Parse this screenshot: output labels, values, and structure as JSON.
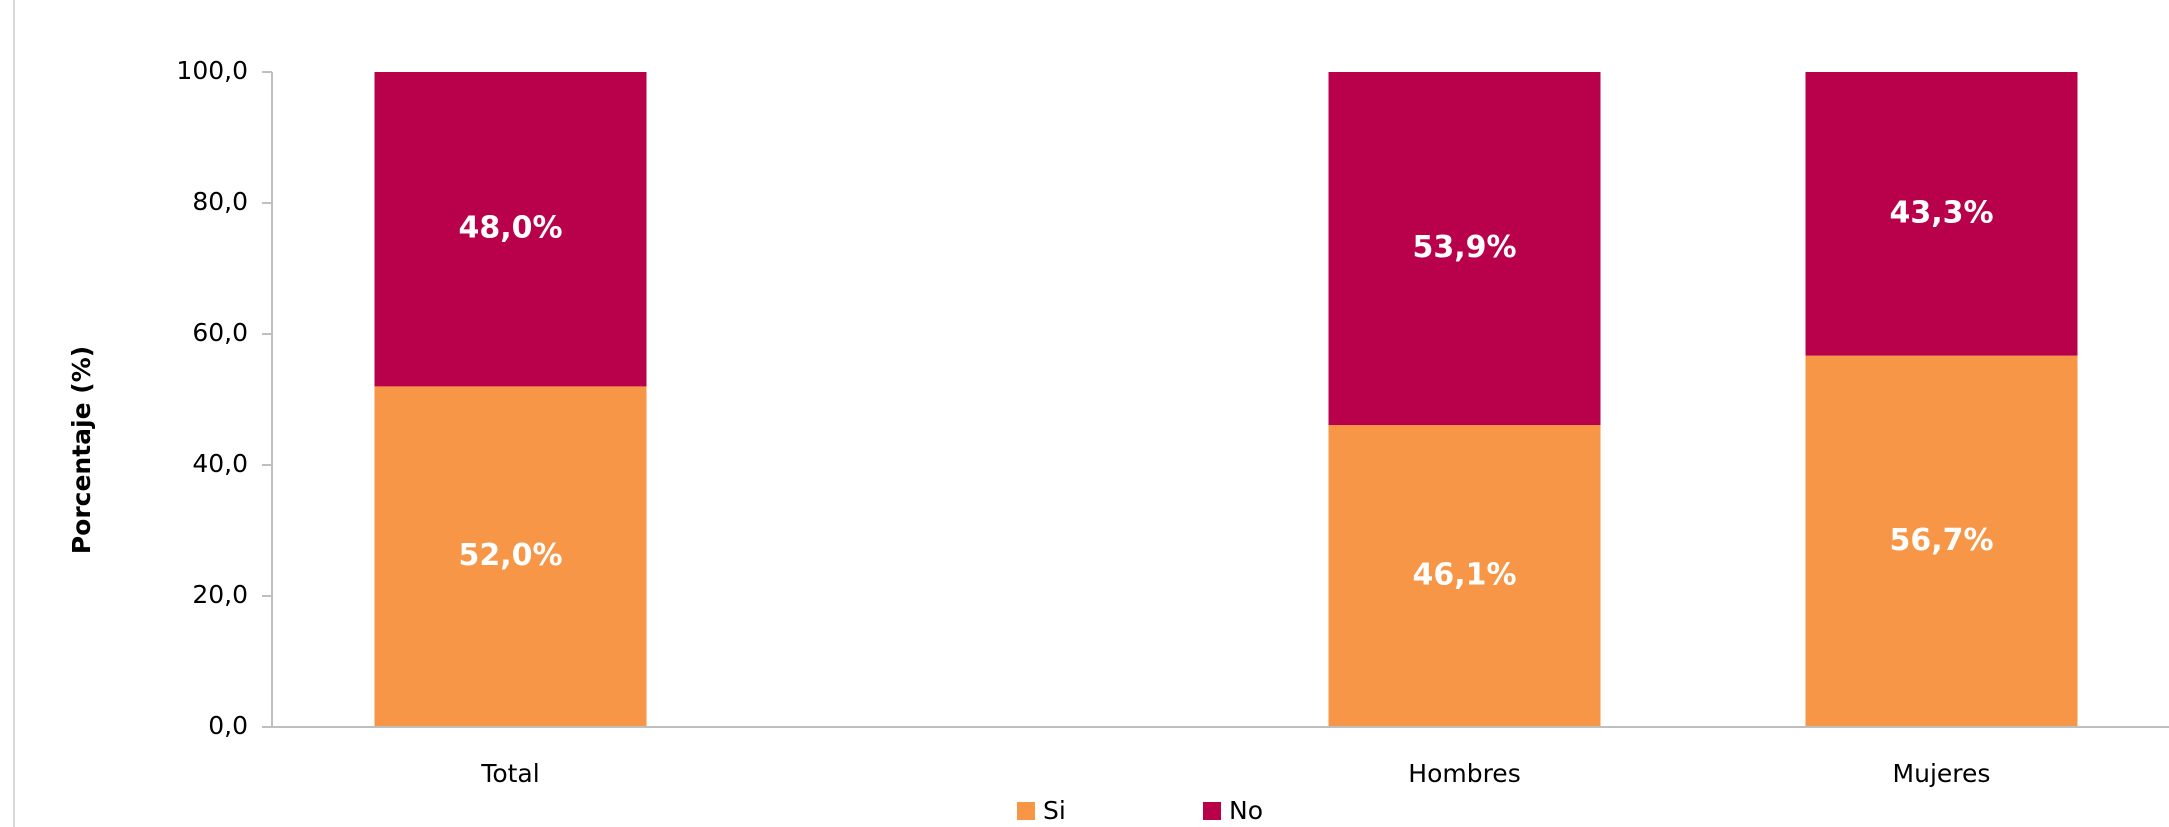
{
  "chart_data": {
    "type": "stacked_bar",
    "y_label": "Porcentaje (%)",
    "categories": [
      "Total",
      null,
      "Hombres",
      "Mujeres"
    ],
    "series": [
      {
        "name": "Si",
        "color": "#f79646",
        "values": [
          52.0,
          null,
          46.1,
          56.7
        ],
        "value_labels": [
          "52,0%",
          null,
          "46,1%",
          "56,7%"
        ]
      },
      {
        "name": "No",
        "color": "#b8004b",
        "values": [
          48.0,
          null,
          53.9,
          43.3
        ],
        "value_labels": [
          "48,0%",
          null,
          "53,9%",
          "43,3%"
        ]
      }
    ],
    "ylim": [
      0,
      100
    ],
    "yticks": [
      {
        "value": 0,
        "label": "0,0"
      },
      {
        "value": 20,
        "label": "20,0"
      },
      {
        "value": 40,
        "label": "40,0"
      },
      {
        "value": 60,
        "label": "60,0"
      },
      {
        "value": 80,
        "label": "80,0"
      },
      {
        "value": 100,
        "label": "100,0"
      }
    ],
    "legend": "bottom"
  }
}
